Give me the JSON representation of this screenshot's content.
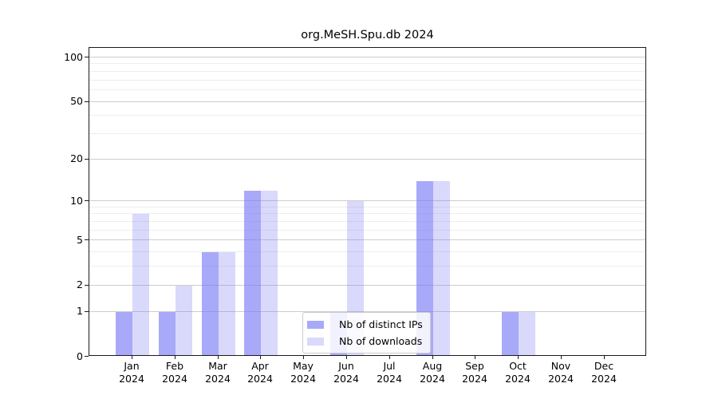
{
  "title": "org.MeSH.Spu.db 2024",
  "chart_data": {
    "type": "bar",
    "title": "org.MeSH.Spu.db 2024",
    "categories": [
      "Jan",
      "Feb",
      "Mar",
      "Apr",
      "May",
      "Jun",
      "Jul",
      "Aug",
      "Sep",
      "Oct",
      "Nov",
      "Dec"
    ],
    "year": "2024",
    "series": [
      {
        "name": "Nb of distinct IPs",
        "values": [
          1,
          1,
          4,
          12,
          0,
          1,
          0,
          14,
          0,
          1,
          0,
          0
        ]
      },
      {
        "name": "Nb of downloads",
        "values": [
          8,
          2,
          4,
          12,
          0,
          10,
          0,
          14,
          0,
          1,
          0,
          0
        ]
      }
    ],
    "xlabel": "",
    "ylabel": "",
    "y_scale": "log10(1+x)",
    "y_major_ticks": [
      0,
      1,
      2,
      5,
      10,
      20,
      50,
      100
    ],
    "y_minor_ticks": [
      3,
      4,
      6,
      7,
      8,
      9,
      30,
      40,
      60,
      70,
      80,
      90
    ],
    "ylim": [
      0,
      116
    ],
    "grid": true,
    "legend_position": "inside-bottom-center"
  },
  "colors": {
    "bar_base_rgb": "120,120,245",
    "series_alpha": [
      0.64,
      0.28
    ],
    "major_grid": "#cdcdcd",
    "minor_grid": "#ededed",
    "spine": "#1a1a1a"
  }
}
